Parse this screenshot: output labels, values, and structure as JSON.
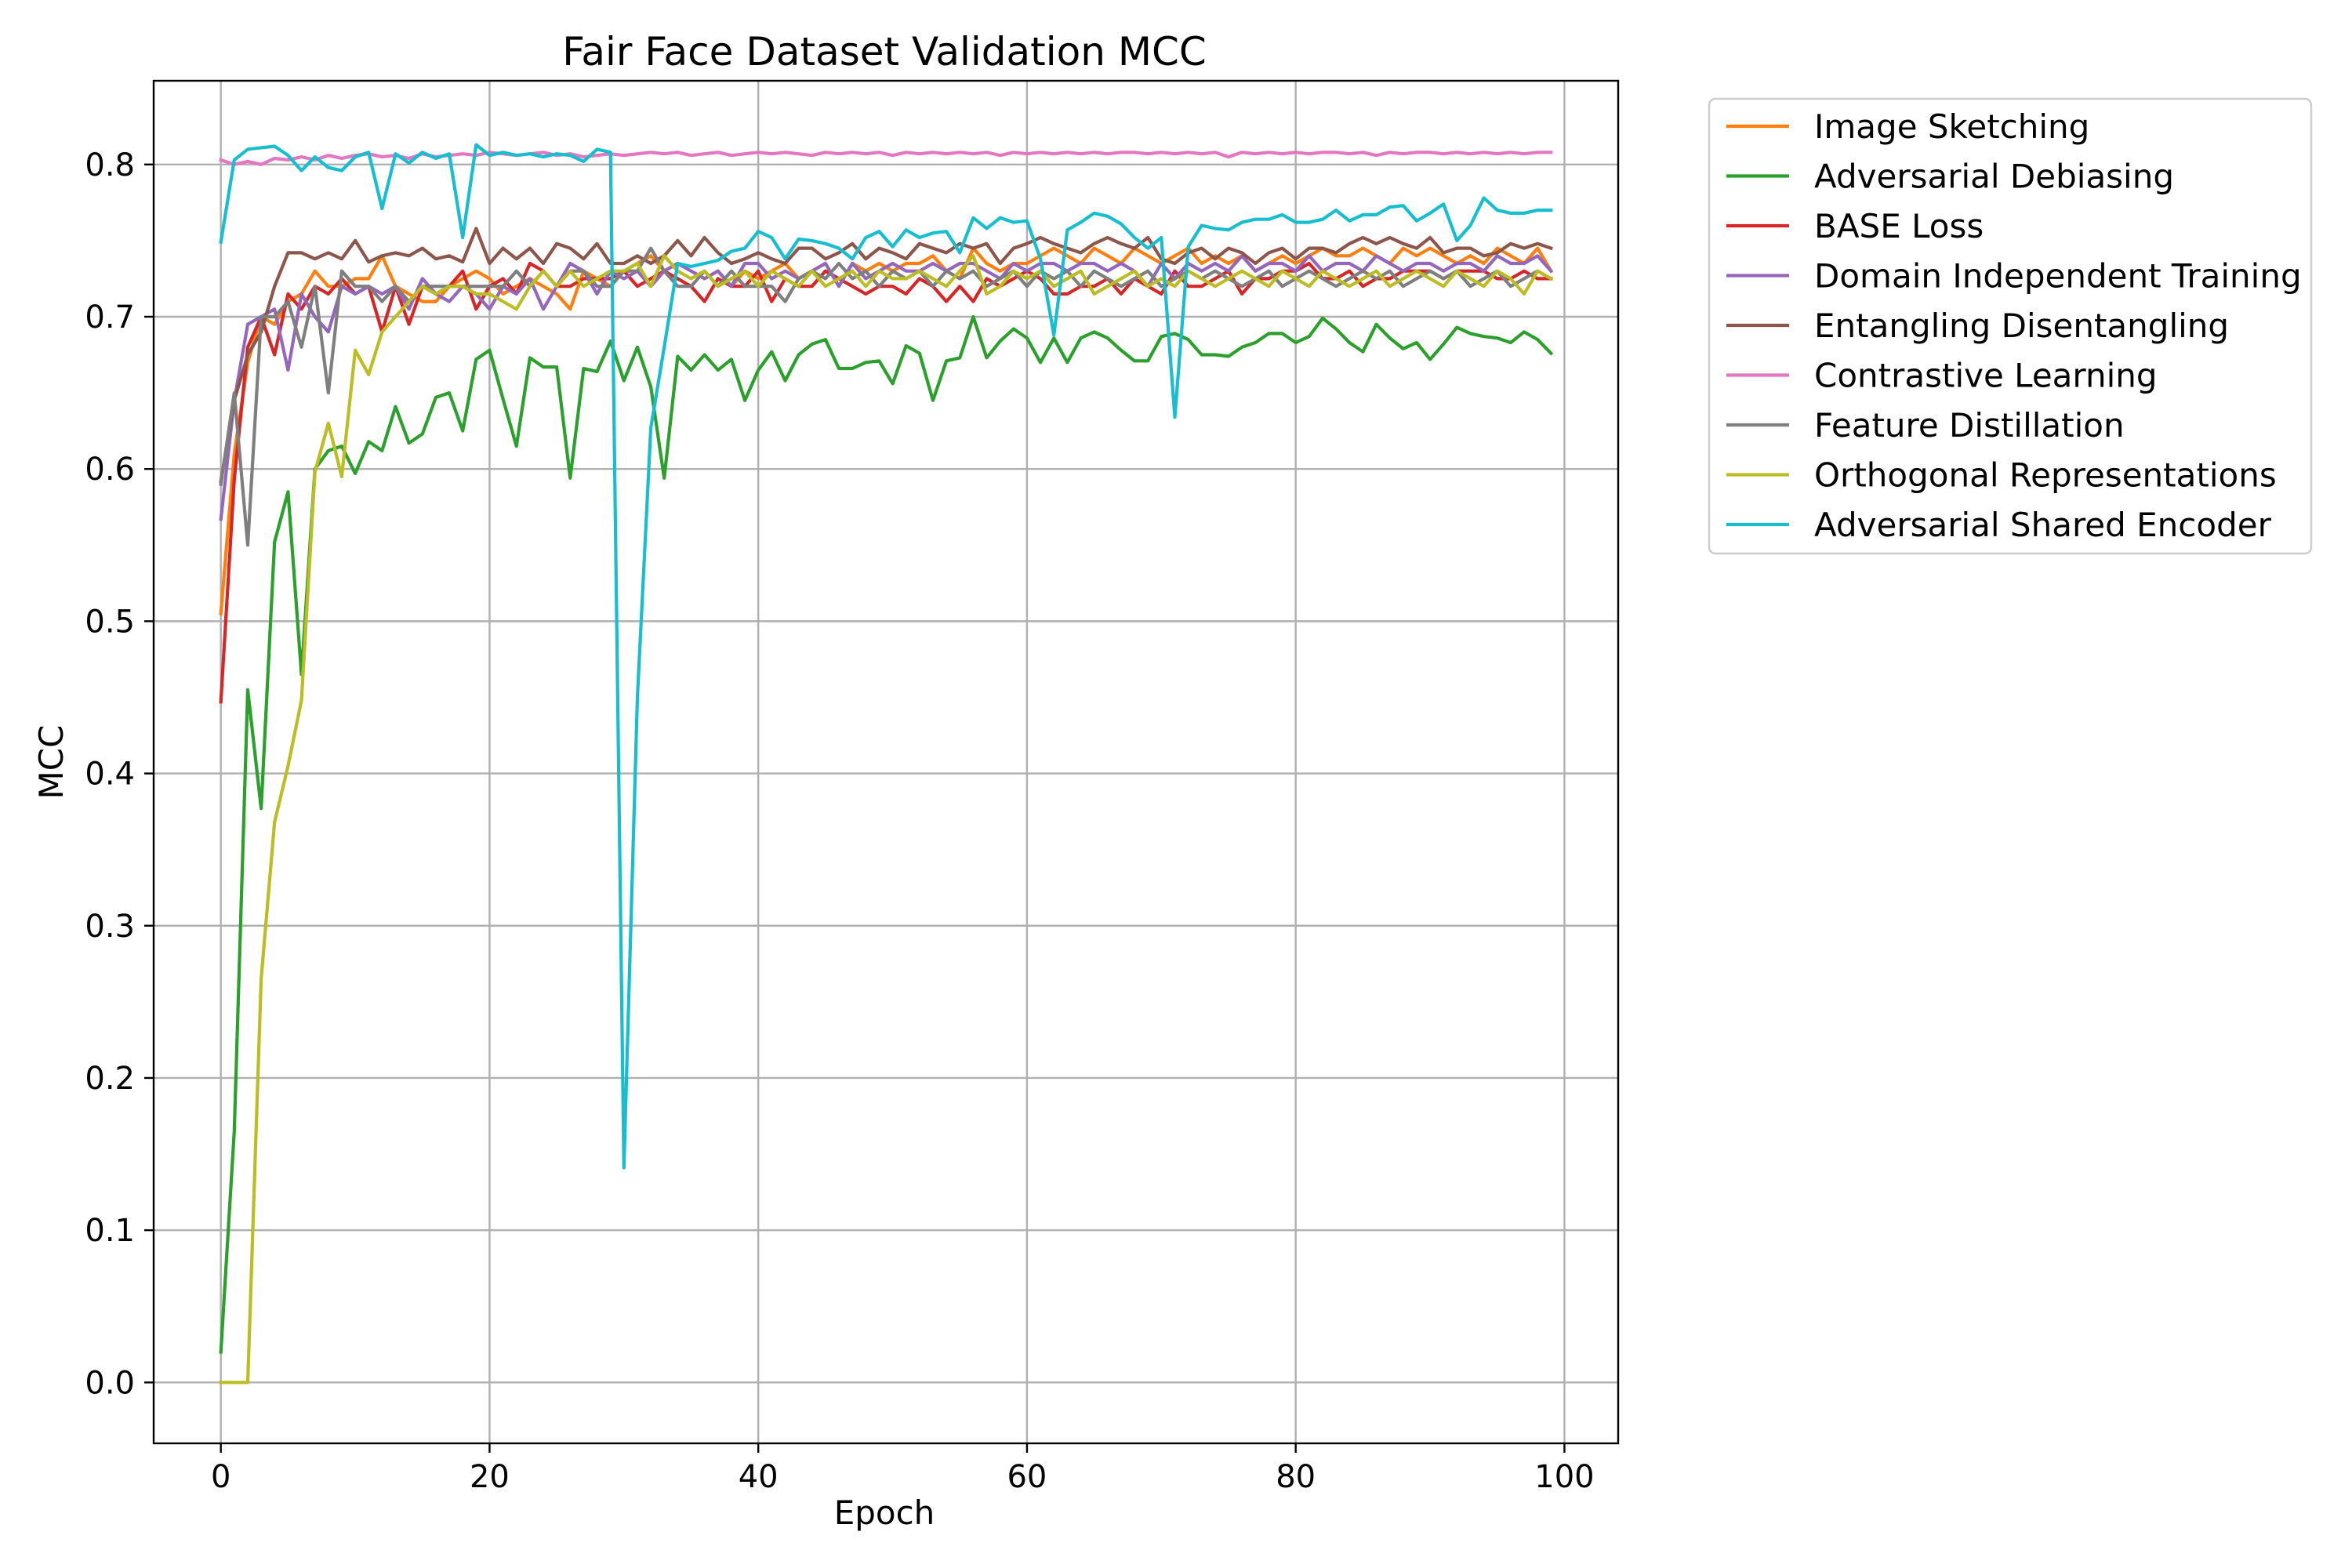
{
  "chart_data": {
    "type": "line",
    "title": "Fair Face Dataset Validation MCC",
    "xlabel": "Epoch",
    "ylabel": "MCC",
    "xlim": [
      -5,
      104
    ],
    "ylim": [
      -0.04,
      0.855
    ],
    "x_ticks": [
      0,
      20,
      40,
      60,
      80,
      100
    ],
    "x_tick_labels": [
      "0",
      "20",
      "40",
      "60",
      "80",
      "100"
    ],
    "y_ticks": [
      0.0,
      0.1,
      0.2,
      0.3,
      0.4,
      0.5,
      0.6,
      0.7,
      0.8
    ],
    "y_tick_labels": [
      "0.0",
      "0.1",
      "0.2",
      "0.3",
      "0.4",
      "0.5",
      "0.6",
      "0.7",
      "0.8"
    ],
    "grid": true,
    "legend_position": "outside-upper-right",
    "x": [
      0,
      1,
      2,
      3,
      4,
      5,
      6,
      7,
      8,
      9,
      10,
      11,
      12,
      13,
      14,
      15,
      16,
      17,
      18,
      19,
      20,
      21,
      22,
      23,
      24,
      25,
      26,
      27,
      28,
      29,
      30,
      31,
      32,
      33,
      34,
      35,
      36,
      37,
      38,
      39,
      40,
      41,
      42,
      43,
      44,
      45,
      46,
      47,
      48,
      49,
      50,
      51,
      52,
      53,
      54,
      55,
      56,
      57,
      58,
      59,
      60,
      61,
      62,
      63,
      64,
      65,
      66,
      67,
      68,
      69,
      70,
      71,
      72,
      73,
      74,
      75,
      76,
      77,
      78,
      79,
      80,
      81,
      82,
      83,
      84,
      85,
      86,
      87,
      88,
      89,
      90,
      91,
      92,
      93,
      94,
      95,
      96,
      97,
      98,
      99
    ],
    "series": [
      {
        "name": "Image Sketching",
        "color": "#ff7f0e",
        "values": [
          0.505,
          0.61,
          0.67,
          0.7,
          0.695,
          0.71,
          0.715,
          0.73,
          0.72,
          0.72,
          0.725,
          0.725,
          0.74,
          0.72,
          0.715,
          0.71,
          0.71,
          0.72,
          0.725,
          0.73,
          0.725,
          0.715,
          0.72,
          0.725,
          0.72,
          0.715,
          0.705,
          0.73,
          0.725,
          0.72,
          0.73,
          0.735,
          0.74,
          0.73,
          0.735,
          0.73,
          0.725,
          0.73,
          0.72,
          0.73,
          0.725,
          0.73,
          0.735,
          0.725,
          0.73,
          0.735,
          0.72,
          0.735,
          0.73,
          0.735,
          0.73,
          0.735,
          0.735,
          0.74,
          0.73,
          0.725,
          0.745,
          0.735,
          0.73,
          0.735,
          0.735,
          0.74,
          0.745,
          0.74,
          0.735,
          0.745,
          0.74,
          0.735,
          0.745,
          0.74,
          0.735,
          0.74,
          0.745,
          0.735,
          0.74,
          0.735,
          0.74,
          0.73,
          0.735,
          0.74,
          0.735,
          0.74,
          0.745,
          0.74,
          0.74,
          0.745,
          0.74,
          0.735,
          0.745,
          0.74,
          0.745,
          0.74,
          0.735,
          0.74,
          0.735,
          0.745,
          0.74,
          0.735,
          0.745,
          0.73
        ]
      },
      {
        "name": "Adversarial Debiasing",
        "color": "#2ca02c",
        "values": [
          0.02,
          0.165,
          0.455,
          0.377,
          0.552,
          0.585,
          0.465,
          0.6,
          0.612,
          0.615,
          0.597,
          0.618,
          0.612,
          0.641,
          0.617,
          0.623,
          0.647,
          0.65,
          0.625,
          0.672,
          0.678,
          0.646,
          0.615,
          0.673,
          0.667,
          0.667,
          0.594,
          0.666,
          0.664,
          0.684,
          0.658,
          0.68,
          0.654,
          0.594,
          0.674,
          0.665,
          0.675,
          0.665,
          0.672,
          0.645,
          0.665,
          0.677,
          0.658,
          0.675,
          0.682,
          0.685,
          0.666,
          0.666,
          0.67,
          0.671,
          0.656,
          0.681,
          0.676,
          0.645,
          0.671,
          0.673,
          0.7,
          0.673,
          0.684,
          0.692,
          0.686,
          0.67,
          0.686,
          0.67,
          0.686,
          0.69,
          0.686,
          0.678,
          0.671,
          0.671,
          0.687,
          0.689,
          0.685,
          0.675,
          0.675,
          0.674,
          0.68,
          0.683,
          0.689,
          0.689,
          0.683,
          0.687,
          0.699,
          0.692,
          0.683,
          0.677,
          0.695,
          0.686,
          0.679,
          0.683,
          0.672,
          0.682,
          0.693,
          0.689,
          0.687,
          0.686,
          0.683,
          0.69,
          0.685,
          0.676
        ]
      },
      {
        "name": "BASE Loss",
        "color": "#d62728",
        "values": [
          0.447,
          0.593,
          0.68,
          0.7,
          0.675,
          0.715,
          0.705,
          0.72,
          0.715,
          0.725,
          0.715,
          0.72,
          0.69,
          0.72,
          0.695,
          0.72,
          0.715,
          0.72,
          0.73,
          0.705,
          0.72,
          0.725,
          0.715,
          0.735,
          0.73,
          0.72,
          0.72,
          0.725,
          0.725,
          0.725,
          0.73,
          0.72,
          0.725,
          0.73,
          0.725,
          0.72,
          0.71,
          0.725,
          0.72,
          0.72,
          0.73,
          0.71,
          0.725,
          0.72,
          0.72,
          0.73,
          0.725,
          0.72,
          0.715,
          0.72,
          0.72,
          0.715,
          0.725,
          0.72,
          0.71,
          0.72,
          0.71,
          0.725,
          0.72,
          0.725,
          0.73,
          0.725,
          0.715,
          0.715,
          0.72,
          0.72,
          0.725,
          0.715,
          0.725,
          0.72,
          0.715,
          0.73,
          0.72,
          0.72,
          0.725,
          0.73,
          0.715,
          0.725,
          0.725,
          0.73,
          0.73,
          0.735,
          0.725,
          0.725,
          0.73,
          0.72,
          0.725,
          0.725,
          0.73,
          0.73,
          0.73,
          0.725,
          0.73,
          0.73,
          0.73,
          0.725,
          0.725,
          0.73,
          0.725,
          0.725
        ]
      },
      {
        "name": "Domain Independent Training",
        "color": "#9467bd",
        "values": [
          0.567,
          0.645,
          0.695,
          0.7,
          0.705,
          0.665,
          0.715,
          0.7,
          0.69,
          0.72,
          0.715,
          0.72,
          0.715,
          0.72,
          0.705,
          0.725,
          0.715,
          0.71,
          0.72,
          0.715,
          0.705,
          0.72,
          0.715,
          0.725,
          0.705,
          0.72,
          0.735,
          0.73,
          0.715,
          0.73,
          0.725,
          0.73,
          0.72,
          0.73,
          0.735,
          0.73,
          0.725,
          0.73,
          0.72,
          0.735,
          0.735,
          0.725,
          0.73,
          0.725,
          0.73,
          0.735,
          0.72,
          0.735,
          0.725,
          0.73,
          0.735,
          0.73,
          0.73,
          0.735,
          0.73,
          0.735,
          0.735,
          0.73,
          0.725,
          0.735,
          0.73,
          0.735,
          0.735,
          0.73,
          0.735,
          0.735,
          0.73,
          0.735,
          0.73,
          0.72,
          0.735,
          0.725,
          0.735,
          0.73,
          0.735,
          0.73,
          0.74,
          0.73,
          0.735,
          0.735,
          0.73,
          0.74,
          0.73,
          0.735,
          0.735,
          0.73,
          0.74,
          0.735,
          0.73,
          0.735,
          0.735,
          0.73,
          0.735,
          0.735,
          0.73,
          0.74,
          0.735,
          0.735,
          0.74,
          0.73
        ]
      },
      {
        "name": "Entangling Disentangling",
        "color": "#8c564b",
        "values": [
          0.592,
          0.645,
          0.675,
          0.69,
          0.72,
          0.742,
          0.742,
          0.738,
          0.742,
          0.738,
          0.75,
          0.736,
          0.74,
          0.742,
          0.74,
          0.745,
          0.738,
          0.74,
          0.736,
          0.758,
          0.735,
          0.745,
          0.738,
          0.745,
          0.735,
          0.748,
          0.745,
          0.738,
          0.748,
          0.735,
          0.735,
          0.74,
          0.735,
          0.74,
          0.75,
          0.74,
          0.752,
          0.742,
          0.735,
          0.738,
          0.742,
          0.738,
          0.735,
          0.745,
          0.745,
          0.738,
          0.742,
          0.748,
          0.738,
          0.745,
          0.742,
          0.738,
          0.748,
          0.745,
          0.742,
          0.748,
          0.745,
          0.748,
          0.735,
          0.745,
          0.748,
          0.752,
          0.748,
          0.745,
          0.742,
          0.748,
          0.752,
          0.748,
          0.745,
          0.752,
          0.738,
          0.735,
          0.742,
          0.745,
          0.738,
          0.745,
          0.742,
          0.735,
          0.742,
          0.745,
          0.738,
          0.745,
          0.745,
          0.742,
          0.748,
          0.752,
          0.748,
          0.752,
          0.748,
          0.745,
          0.752,
          0.742,
          0.745,
          0.745,
          0.74,
          0.742,
          0.748,
          0.745,
          0.748,
          0.745
        ]
      },
      {
        "name": "Contrastive Learning",
        "color": "#e377c2",
        "values": [
          0.803,
          0.8,
          0.802,
          0.8,
          0.804,
          0.803,
          0.805,
          0.803,
          0.806,
          0.804,
          0.806,
          0.807,
          0.805,
          0.806,
          0.804,
          0.807,
          0.805,
          0.806,
          0.807,
          0.806,
          0.808,
          0.807,
          0.806,
          0.807,
          0.808,
          0.806,
          0.807,
          0.805,
          0.806,
          0.807,
          0.806,
          0.807,
          0.808,
          0.807,
          0.808,
          0.806,
          0.807,
          0.808,
          0.806,
          0.807,
          0.808,
          0.807,
          0.808,
          0.807,
          0.806,
          0.808,
          0.807,
          0.808,
          0.807,
          0.808,
          0.806,
          0.808,
          0.807,
          0.808,
          0.807,
          0.808,
          0.807,
          0.808,
          0.806,
          0.808,
          0.807,
          0.808,
          0.807,
          0.808,
          0.807,
          0.808,
          0.807,
          0.808,
          0.808,
          0.807,
          0.808,
          0.807,
          0.808,
          0.807,
          0.808,
          0.805,
          0.808,
          0.807,
          0.808,
          0.807,
          0.808,
          0.807,
          0.808,
          0.808,
          0.807,
          0.808,
          0.806,
          0.808,
          0.807,
          0.808,
          0.808,
          0.807,
          0.808,
          0.807,
          0.808,
          0.807,
          0.808,
          0.807,
          0.808,
          0.808
        ]
      },
      {
        "name": "Feature Distillation",
        "color": "#7f7f7f",
        "values": [
          0.59,
          0.65,
          0.55,
          0.7,
          0.7,
          0.71,
          0.68,
          0.72,
          0.65,
          0.73,
          0.72,
          0.72,
          0.71,
          0.72,
          0.71,
          0.72,
          0.72,
          0.72,
          0.72,
          0.72,
          0.72,
          0.72,
          0.73,
          0.72,
          0.73,
          0.72,
          0.73,
          0.73,
          0.72,
          0.72,
          0.73,
          0.73,
          0.745,
          0.73,
          0.72,
          0.72,
          0.73,
          0.72,
          0.73,
          0.72,
          0.72,
          0.72,
          0.71,
          0.725,
          0.73,
          0.725,
          0.735,
          0.725,
          0.73,
          0.72,
          0.73,
          0.725,
          0.73,
          0.72,
          0.73,
          0.725,
          0.73,
          0.72,
          0.725,
          0.73,
          0.72,
          0.73,
          0.725,
          0.73,
          0.72,
          0.73,
          0.725,
          0.72,
          0.725,
          0.73,
          0.72,
          0.725,
          0.73,
          0.725,
          0.73,
          0.725,
          0.72,
          0.725,
          0.73,
          0.72,
          0.725,
          0.73,
          0.725,
          0.72,
          0.725,
          0.73,
          0.725,
          0.73,
          0.72,
          0.725,
          0.73,
          0.725,
          0.73,
          0.72,
          0.725,
          0.73,
          0.72,
          0.725,
          0.73,
          0.725
        ]
      },
      {
        "name": "Orthogonal Representations",
        "color": "#bcbd22",
        "values": [
          0.0,
          0.0,
          0.0,
          0.265,
          0.368,
          0.405,
          0.448,
          0.598,
          0.63,
          0.595,
          0.678,
          0.662,
          0.69,
          0.7,
          0.71,
          0.72,
          0.715,
          0.72,
          0.72,
          0.715,
          0.715,
          0.71,
          0.705,
          0.72,
          0.73,
          0.72,
          0.73,
          0.72,
          0.725,
          0.73,
          0.73,
          0.735,
          0.72,
          0.74,
          0.73,
          0.725,
          0.73,
          0.72,
          0.725,
          0.73,
          0.72,
          0.73,
          0.725,
          0.72,
          0.73,
          0.72,
          0.725,
          0.73,
          0.72,
          0.73,
          0.725,
          0.725,
          0.73,
          0.725,
          0.72,
          0.73,
          0.74,
          0.715,
          0.72,
          0.73,
          0.725,
          0.73,
          0.72,
          0.725,
          0.73,
          0.715,
          0.72,
          0.725,
          0.73,
          0.72,
          0.725,
          0.72,
          0.73,
          0.725,
          0.72,
          0.725,
          0.73,
          0.725,
          0.72,
          0.73,
          0.725,
          0.72,
          0.73,
          0.725,
          0.72,
          0.725,
          0.73,
          0.72,
          0.725,
          0.73,
          0.725,
          0.72,
          0.73,
          0.725,
          0.72,
          0.73,
          0.725,
          0.715,
          0.73,
          0.725
        ]
      },
      {
        "name": "Adversarial Shared Encoder",
        "color": "#17becf",
        "values": [
          0.749,
          0.803,
          0.81,
          0.811,
          0.812,
          0.806,
          0.796,
          0.805,
          0.798,
          0.796,
          0.805,
          0.808,
          0.771,
          0.807,
          0.801,
          0.808,
          0.804,
          0.807,
          0.752,
          0.813,
          0.806,
          0.808,
          0.806,
          0.807,
          0.805,
          0.807,
          0.806,
          0.802,
          0.81,
          0.808,
          0.141,
          0.45,
          0.627,
          0.68,
          0.735,
          0.733,
          0.735,
          0.737,
          0.743,
          0.745,
          0.756,
          0.752,
          0.738,
          0.751,
          0.75,
          0.748,
          0.745,
          0.738,
          0.752,
          0.756,
          0.746,
          0.757,
          0.752,
          0.755,
          0.756,
          0.742,
          0.765,
          0.758,
          0.765,
          0.762,
          0.763,
          0.738,
          0.688,
          0.757,
          0.762,
          0.768,
          0.766,
          0.761,
          0.752,
          0.745,
          0.752,
          0.634,
          0.746,
          0.76,
          0.758,
          0.757,
          0.762,
          0.764,
          0.764,
          0.767,
          0.762,
          0.762,
          0.764,
          0.77,
          0.763,
          0.767,
          0.767,
          0.772,
          0.773,
          0.763,
          0.768,
          0.774,
          0.75,
          0.76,
          0.778,
          0.77,
          0.768,
          0.768,
          0.77,
          0.77
        ]
      }
    ]
  }
}
